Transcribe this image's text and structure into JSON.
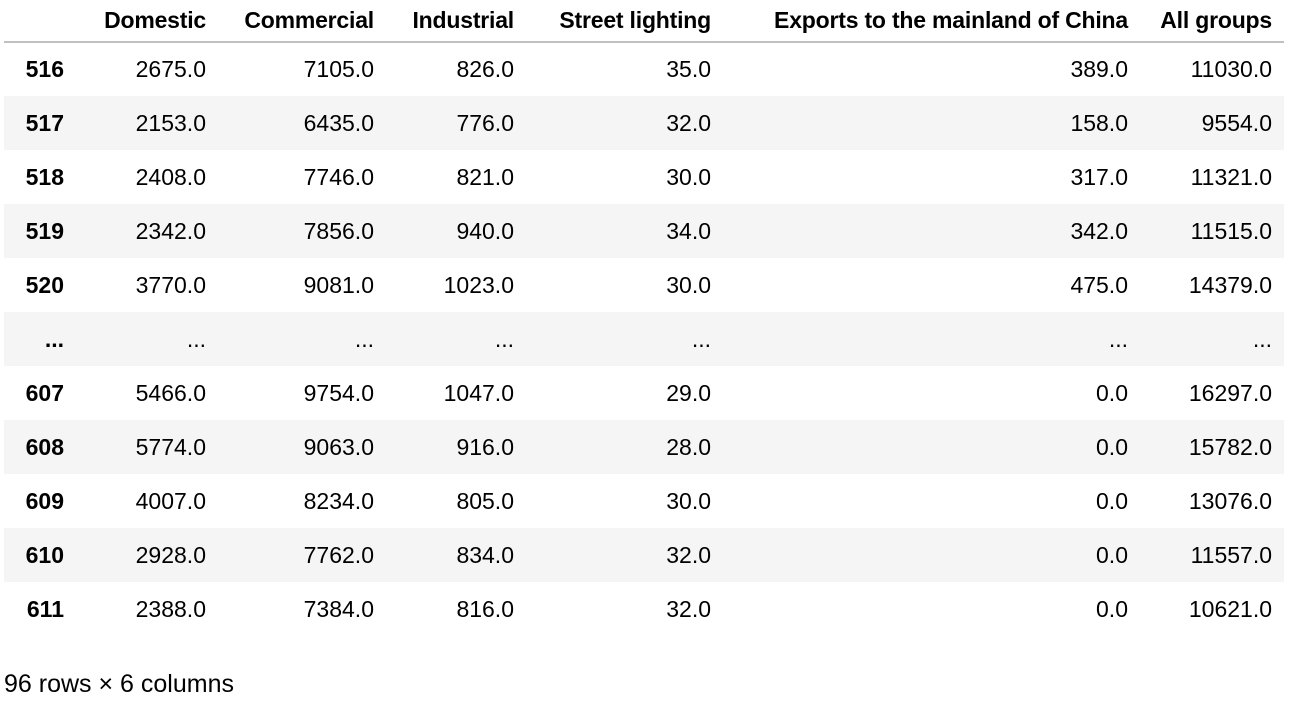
{
  "table": {
    "columns": [
      "Domestic",
      "Commercial",
      "Industrial",
      "Street lighting",
      "Exports to the mainland of China",
      "All groups"
    ],
    "rows": [
      {
        "index": "516",
        "cells": [
          "2675.0",
          "7105.0",
          "826.0",
          "35.0",
          "389.0",
          "11030.0"
        ]
      },
      {
        "index": "517",
        "cells": [
          "2153.0",
          "6435.0",
          "776.0",
          "32.0",
          "158.0",
          "9554.0"
        ]
      },
      {
        "index": "518",
        "cells": [
          "2408.0",
          "7746.0",
          "821.0",
          "30.0",
          "317.0",
          "11321.0"
        ]
      },
      {
        "index": "519",
        "cells": [
          "2342.0",
          "7856.0",
          "940.0",
          "34.0",
          "342.0",
          "11515.0"
        ]
      },
      {
        "index": "520",
        "cells": [
          "3770.0",
          "9081.0",
          "1023.0",
          "30.0",
          "475.0",
          "14379.0"
        ]
      },
      {
        "index": "...",
        "cells": [
          "...",
          "...",
          "...",
          "...",
          "...",
          "..."
        ]
      },
      {
        "index": "607",
        "cells": [
          "5466.0",
          "9754.0",
          "1047.0",
          "29.0",
          "0.0",
          "16297.0"
        ]
      },
      {
        "index": "608",
        "cells": [
          "5774.0",
          "9063.0",
          "916.0",
          "28.0",
          "0.0",
          "15782.0"
        ]
      },
      {
        "index": "609",
        "cells": [
          "4007.0",
          "8234.0",
          "805.0",
          "30.0",
          "0.0",
          "13076.0"
        ]
      },
      {
        "index": "610",
        "cells": [
          "2928.0",
          "7762.0",
          "834.0",
          "32.0",
          "0.0",
          "11557.0"
        ]
      },
      {
        "index": "611",
        "cells": [
          "2388.0",
          "7384.0",
          "816.0",
          "32.0",
          "0.0",
          "10621.0"
        ]
      }
    ]
  },
  "summary": "96 rows × 6 columns"
}
